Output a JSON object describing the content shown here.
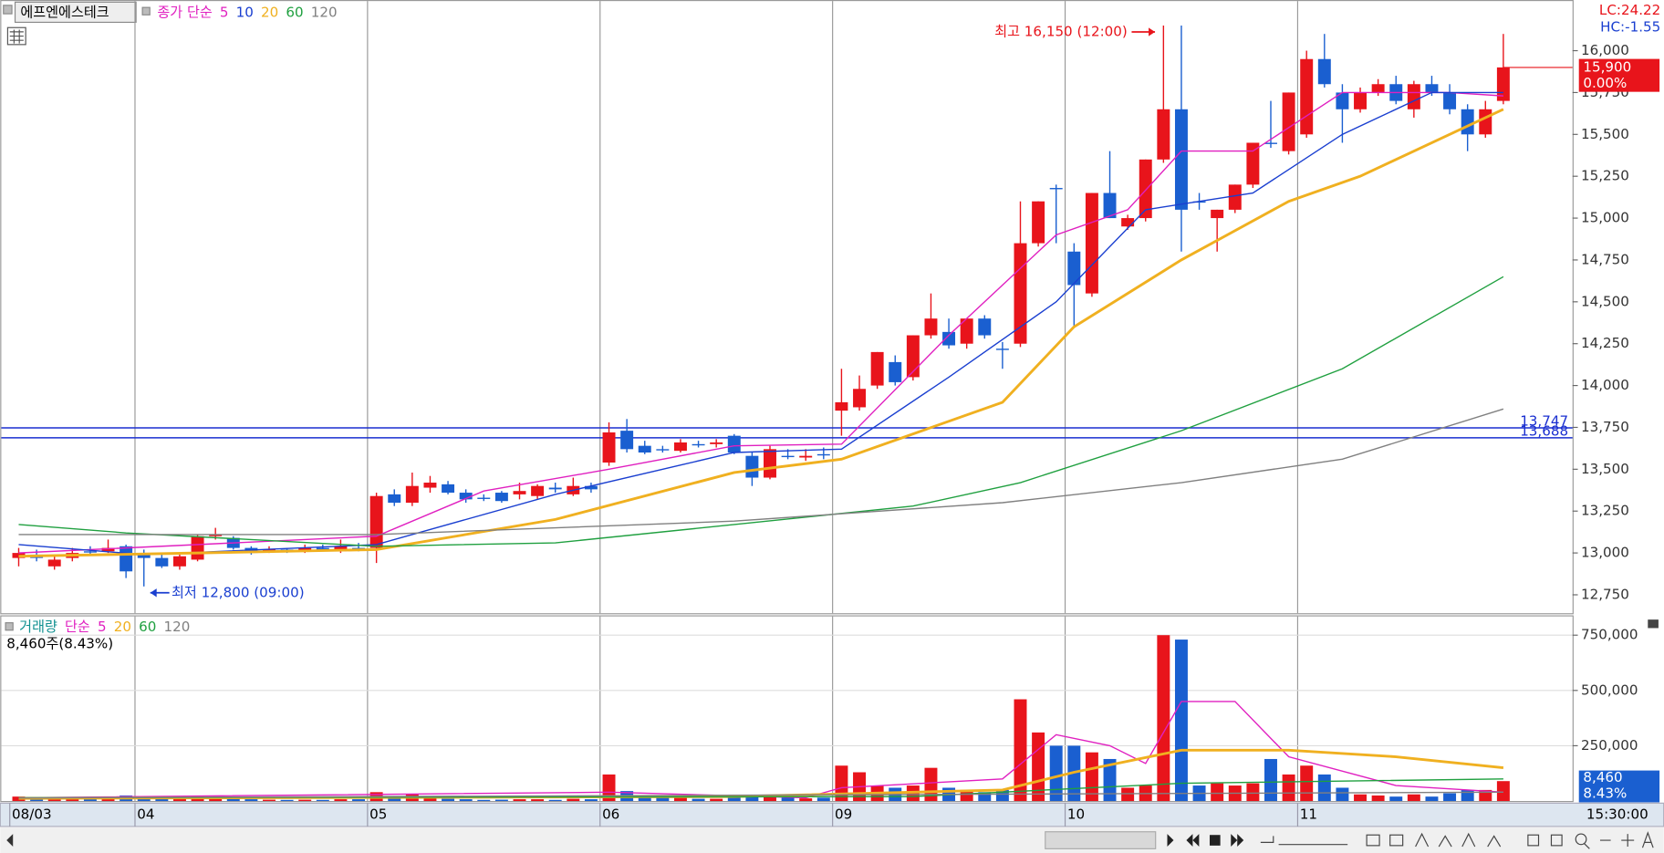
{
  "chart_data": [
    {
      "type": "candlestick",
      "title": "에프엔에스테크",
      "legend_prefix": "종가 단순",
      "categories": [
        "08/03",
        null,
        null,
        null,
        null,
        null,
        null,
        "04",
        null,
        null,
        null,
        null,
        null,
        null,
        null,
        null,
        null,
        null,
        null,
        null,
        "05",
        null,
        null,
        null,
        null,
        null,
        null,
        null,
        null,
        null,
        null,
        null,
        null,
        "06",
        null,
        null,
        null,
        null,
        null,
        null,
        null,
        null,
        null,
        null,
        null,
        null,
        "09",
        null,
        null,
        null,
        null,
        null,
        null,
        null,
        null,
        null,
        null,
        null,
        null,
        "10",
        null,
        null,
        null,
        null,
        null,
        null,
        null,
        null,
        null,
        null,
        null,
        null,
        "11",
        null,
        null,
        null,
        null,
        null,
        null,
        null,
        null,
        null,
        null,
        null
      ],
      "open": [
        12970,
        12990,
        12920,
        12970,
        13010,
        13010,
        13040,
        13000,
        12970,
        12920,
        12960,
        13100,
        13090,
        13030,
        13010,
        13020,
        13010,
        13030,
        13010,
        13030,
        13030,
        13350,
        13300,
        13390,
        13410,
        13360,
        13330,
        13360,
        13350,
        13340,
        13390,
        13350,
        13400,
        13540,
        13730,
        13640,
        13620,
        13610,
        13650,
        13650,
        13700,
        13580,
        13450,
        13580,
        13570,
        13590,
        13850,
        13870,
        14000,
        14140,
        14050,
        14300,
        14320,
        14250,
        14400,
        14220,
        14250,
        14850,
        15180,
        14800,
        14550,
        15150,
        14950,
        15000,
        15350,
        15650,
        15100,
        15000,
        15050,
        15200,
        15450,
        15400,
        15500,
        15950,
        15750,
        15650,
        15750,
        15800,
        15650,
        15800,
        15750,
        15650,
        15500,
        15700
      ],
      "high": [
        13030,
        13020,
        12990,
        13030,
        13040,
        13080,
        13050,
        13020,
        12990,
        12990,
        13110,
        13150,
        13100,
        13040,
        13040,
        13030,
        13050,
        13050,
        13080,
        13060,
        13360,
        13380,
        13480,
        13460,
        13430,
        13380,
        13350,
        13370,
        13420,
        13410,
        13420,
        13450,
        13420,
        13780,
        13800,
        13670,
        13640,
        13680,
        13670,
        13680,
        13710,
        13600,
        13640,
        13620,
        13620,
        13630,
        14100,
        14060,
        14200,
        14180,
        14300,
        14550,
        14400,
        14400,
        14420,
        14260,
        15100,
        15100,
        15200,
        14850,
        15150,
        15400,
        15020,
        15350,
        16150,
        16150,
        15150,
        15050,
        15200,
        15450,
        15700,
        15750,
        16000,
        16100,
        15800,
        15780,
        15830,
        15850,
        15820,
        15850,
        15800,
        15680,
        15700,
        16100
      ],
      "low": [
        12920,
        12950,
        12900,
        12950,
        12990,
        13000,
        12850,
        12800,
        12910,
        12900,
        12950,
        13080,
        13020,
        12990,
        13000,
        13000,
        13000,
        13010,
        13000,
        13010,
        12940,
        13280,
        13280,
        13360,
        13350,
        13300,
        13310,
        13300,
        13320,
        13320,
        13360,
        13340,
        13360,
        13520,
        13600,
        13590,
        13600,
        13600,
        13630,
        13630,
        13590,
        13400,
        13440,
        13560,
        13550,
        13560,
        13700,
        13850,
        13980,
        14000,
        14030,
        14280,
        14220,
        14220,
        14280,
        14100,
        14230,
        14830,
        14850,
        14350,
        14530,
        15000,
        14930,
        14980,
        15330,
        14800,
        15050,
        14800,
        15030,
        15180,
        15420,
        15380,
        15480,
        15780,
        15450,
        15630,
        15730,
        15680,
        15600,
        15730,
        15620,
        15400,
        15480,
        15680
      ],
      "close": [
        13000,
        12970,
        12960,
        13000,
        13010,
        13030,
        12890,
        12970,
        12920,
        12980,
        13100,
        13110,
        13030,
        13000,
        13020,
        13010,
        13030,
        13020,
        13040,
        13030,
        13340,
        13300,
        13400,
        13420,
        13360,
        13320,
        13330,
        13310,
        13370,
        13400,
        13380,
        13400,
        13380,
        13720,
        13620,
        13600,
        13620,
        13660,
        13650,
        13660,
        13600,
        13450,
        13620,
        13580,
        13580,
        13590,
        13900,
        13980,
        14200,
        14020,
        14300,
        14400,
        14240,
        14400,
        14300,
        14220,
        14850,
        15100,
        15180,
        14600,
        15150,
        15000,
        15000,
        15350,
        15650,
        15050,
        15100,
        15050,
        15200,
        15450,
        15450,
        15750,
        15950,
        15800,
        15650,
        15750,
        15800,
        15700,
        15800,
        15750,
        15650,
        15500,
        15650,
        15900
      ],
      "up_color": "#e8141b",
      "down_color": "#1a5fd0",
      "ma_series": [
        {
          "name": "5",
          "color": "#e020c0",
          "x": [
            0,
            20,
            26,
            33,
            40,
            46,
            52,
            58,
            62,
            65,
            69,
            74,
            80,
            83
          ],
          "values": [
            13000,
            13100,
            13370,
            13500,
            13640,
            13650,
            14300,
            14900,
            15050,
            15400,
            15400,
            15750,
            15750,
            15730
          ]
        },
        {
          "name": "10",
          "color": "#1a3fd0",
          "x": [
            0,
            7,
            20,
            30,
            40,
            46,
            52,
            58,
            63,
            69,
            74,
            79,
            83
          ],
          "values": [
            13050,
            12990,
            13050,
            13350,
            13600,
            13620,
            14050,
            14500,
            15050,
            15150,
            15500,
            15750,
            15750
          ]
        },
        {
          "name": "20",
          "color": "#f0b020",
          "x": [
            0,
            10,
            20,
            30,
            40,
            46,
            55,
            59,
            65,
            71,
            75,
            83
          ],
          "values": [
            12980,
            13000,
            13020,
            13200,
            13480,
            13560,
            13900,
            14350,
            14750,
            15100,
            15250,
            15650
          ]
        },
        {
          "name": "60",
          "color": "#20a040",
          "x": [
            0,
            6,
            20,
            30,
            40,
            50,
            56,
            65,
            74,
            83
          ],
          "values": [
            13170,
            13120,
            13040,
            13060,
            13170,
            13280,
            13420,
            13730,
            14100,
            14650
          ]
        },
        {
          "name": "120",
          "color": "#808080",
          "x": [
            0,
            20,
            40,
            55,
            65,
            74,
            83
          ],
          "values": [
            13110,
            13110,
            13190,
            13300,
            13420,
            13560,
            13860
          ]
        }
      ],
      "ylim": [
        12640,
        16290
      ],
      "yticks": [
        {
          "value": 12750,
          "label": "12,750"
        },
        {
          "value": 13000,
          "label": "13,000"
        },
        {
          "value": 13250,
          "label": "13,250"
        },
        {
          "value": 13500,
          "label": "13,500"
        },
        {
          "value": 13750,
          "label": "13,750"
        },
        {
          "value": 14000,
          "label": "14,000"
        },
        {
          "value": 14250,
          "label": "14,250"
        },
        {
          "value": 14500,
          "label": "14,500"
        },
        {
          "value": 14750,
          "label": "14,750"
        },
        {
          "value": 15000,
          "label": "15,000"
        },
        {
          "value": 15250,
          "label": "15,250"
        },
        {
          "value": 15500,
          "label": "15,500"
        },
        {
          "value": 15750,
          "label": "15,750"
        },
        {
          "value": 16000,
          "label": "16,000"
        }
      ],
      "hlines": [
        {
          "value": 13747,
          "label": "13,747"
        },
        {
          "value": 13688,
          "label": "13,688"
        }
      ],
      "annotations": [
        {
          "text": "최고 16,150 (12:00)",
          "value": 16150,
          "x": 64,
          "color": "#e8141b"
        },
        {
          "text": "최저 12,800 (09:00)",
          "value": 12800,
          "x": 7,
          "color": "#1a3fd0"
        }
      ],
      "last_price": {
        "value": 15900,
        "label": "15,900"
      },
      "change_label": "0.00%",
      "lc_label": "LC:24.22",
      "hc_label": "HC:-1.55"
    },
    {
      "type": "bar",
      "title": "거래량",
      "legend_prefix": "단순",
      "values": [
        20000,
        15000,
        15000,
        12000,
        10000,
        12000,
        25000,
        20000,
        15000,
        12000,
        22000,
        10000,
        12000,
        8000,
        6000,
        5000,
        6000,
        5000,
        8000,
        8000,
        40000,
        15000,
        30000,
        15000,
        10000,
        8000,
        5000,
        6000,
        8000,
        8000,
        5000,
        10000,
        8000,
        120000,
        45000,
        20000,
        15000,
        15000,
        10000,
        10000,
        15000,
        25000,
        20000,
        15000,
        12000,
        15000,
        160000,
        130000,
        70000,
        60000,
        70000,
        150000,
        60000,
        50000,
        40000,
        50000,
        460000,
        310000,
        250000,
        250000,
        220000,
        190000,
        60000,
        70000,
        750000,
        730000,
        70000,
        80000,
        70000,
        80000,
        190000,
        120000,
        160000,
        120000,
        60000,
        30000,
        25000,
        20000,
        30000,
        20000,
        35000,
        50000,
        50000,
        90000
      ],
      "ma_series": [
        {
          "name": "5",
          "color": "#e020c0",
          "x": [
            0,
            33,
            44,
            46,
            55,
            58,
            61,
            63,
            65,
            68,
            71,
            77,
            83
          ],
          "values": [
            15000,
            40000,
            15000,
            60000,
            100000,
            300000,
            250000,
            170000,
            450000,
            450000,
            200000,
            70000,
            40000
          ]
        },
        {
          "name": "20",
          "color": "#f0b020",
          "x": [
            0,
            40,
            55,
            59,
            65,
            71,
            77,
            83
          ],
          "values": [
            12000,
            20000,
            50000,
            130000,
            230000,
            230000,
            200000,
            150000
          ]
        },
        {
          "name": "60",
          "color": "#20a040",
          "x": [
            0,
            50,
            65,
            83
          ],
          "values": [
            15000,
            20000,
            80000,
            100000
          ]
        },
        {
          "name": "120",
          "color": "#808080",
          "x": [
            0,
            83
          ],
          "values": [
            14000,
            40000
          ]
        }
      ],
      "ylim": [
        0,
        830000
      ],
      "yticks": [
        {
          "value": 250000,
          "label": "250,000"
        },
        {
          "value": 500000,
          "label": "500,000"
        },
        {
          "value": 750000,
          "label": "750,000"
        }
      ],
      "info": "8,460주(8.43%)",
      "last_label": "8,460",
      "pct_label": "8.43%",
      "time_label": "15:30:00"
    }
  ]
}
